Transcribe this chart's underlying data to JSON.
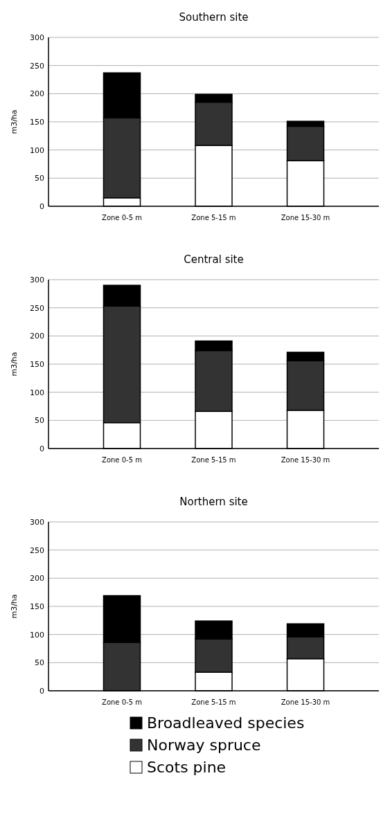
{
  "chart_data": [
    {
      "type": "bar",
      "title": "Southern site",
      "ylabel": "m3/ha",
      "categories": [
        "Zone 0-5 m",
        "Zone 5-15 m",
        "Zone 15-30 m"
      ],
      "stacked": true,
      "ylim": [
        0,
        300
      ],
      "yticks": [
        0,
        50,
        100,
        150,
        200,
        250,
        300
      ],
      "grid": "y",
      "series": [
        {
          "color": "#ffffff",
          "values": [
            15,
            108,
            81
          ]
        },
        {
          "color": "#333333",
          "values": [
            142,
            77,
            61
          ]
        },
        {
          "color": "#000000",
          "values": [
            80,
            14,
            9
          ]
        }
      ]
    },
    {
      "type": "bar",
      "title": "Central site",
      "ylabel": "m3/ha",
      "categories": [
        "Zone 0-5 m",
        "Zone 5-15 m",
        "Zone 15-30 m"
      ],
      "stacked": true,
      "ylim": [
        0,
        300
      ],
      "yticks": [
        0,
        50,
        100,
        150,
        200,
        250,
        300
      ],
      "grid": "y",
      "series": [
        {
          "color": "#ffffff",
          "values": [
            46,
            66,
            68
          ]
        },
        {
          "color": "#333333",
          "values": [
            207,
            108,
            88
          ]
        },
        {
          "color": "#000000",
          "values": [
            37,
            17,
            15
          ]
        }
      ]
    },
    {
      "type": "bar",
      "title": "Northern site",
      "ylabel": "m3/ha",
      "categories": [
        "Zone 0-5 m",
        "Zone 5-15 m",
        "Zone 15-30 m"
      ],
      "stacked": true,
      "ylim": [
        0,
        300
      ],
      "yticks": [
        0,
        50,
        100,
        150,
        200,
        250,
        300
      ],
      "grid": "y",
      "legend": "bottom",
      "series": [
        {
          "name": "Scots pine",
          "color": "#ffffff",
          "values": [
            null,
            33,
            57
          ]
        },
        {
          "name": "Norway spruce",
          "color": "#333333",
          "values": [
            86,
            59,
            39
          ]
        },
        {
          "name": "Broadleaved species",
          "color": "#000000",
          "values": [
            83,
            32,
            23
          ]
        }
      ]
    }
  ]
}
